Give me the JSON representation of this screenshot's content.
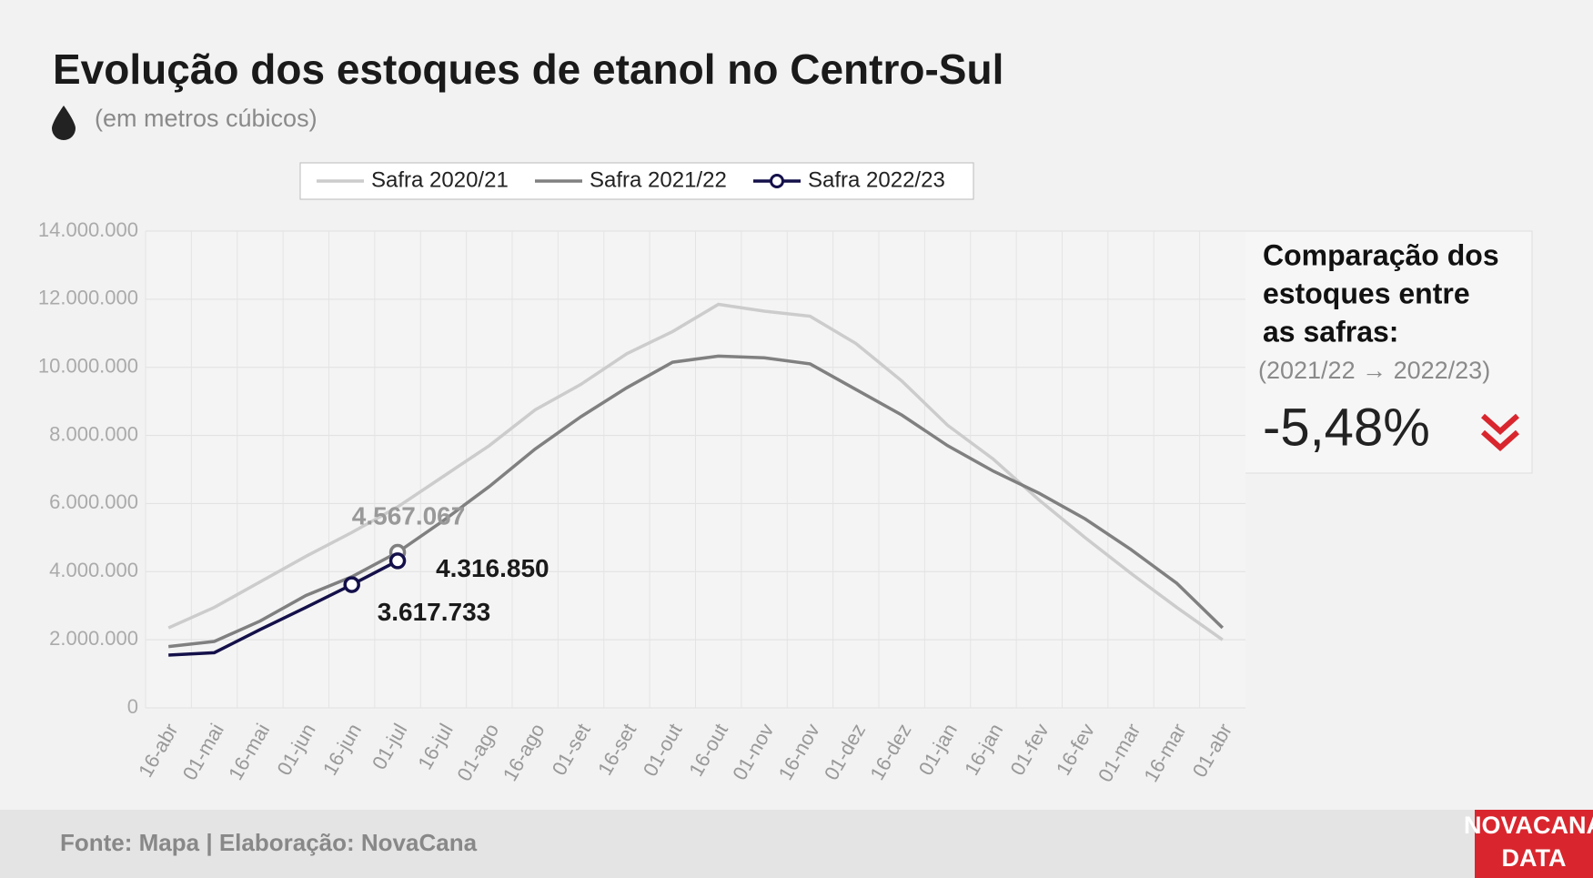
{
  "chart_data": {
    "type": "line",
    "title": "Evolução dos estoques de etanol no Centro-Sul",
    "subtitle": "(em metros cúbicos)",
    "categories": [
      "16-abr",
      "01-mai",
      "16-mai",
      "01-jun",
      "16-jun",
      "01-jul",
      "16-jul",
      "01-ago",
      "16-ago",
      "01-set",
      "16-set",
      "01-out",
      "16-out",
      "01-nov",
      "16-nov",
      "01-dez",
      "16-dez",
      "01-jan",
      "16-jan",
      "01-fev",
      "16-fev",
      "01-mar",
      "16-mar",
      "01-abr"
    ],
    "series": [
      {
        "name": "Safra 2020/21",
        "color": "#cccccc",
        "values": [
          2350000,
          2950000,
          3700000,
          4450000,
          5150000,
          5900000,
          6800000,
          7700000,
          8750000,
          9500000,
          10400000,
          11050000,
          11850000,
          11650000,
          11500000,
          10700000,
          9600000,
          8300000,
          7300000,
          6100000,
          5000000,
          3950000,
          2950000,
          2000000
        ]
      },
      {
        "name": "Safra 2021/22",
        "color": "#808080",
        "values": [
          1800000,
          1950000,
          2550000,
          3300000,
          3850000,
          4567067,
          5500000,
          6500000,
          7600000,
          8550000,
          9400000,
          10150000,
          10330000,
          10280000,
          10100000,
          9350000,
          8600000,
          7700000,
          6950000,
          6300000,
          5550000,
          4650000,
          3660000,
          2350000
        ],
        "value_labels": [
          null,
          null,
          null,
          null,
          null,
          "4.567.067",
          null,
          null,
          null,
          null,
          null,
          null,
          null,
          null,
          null,
          null,
          null,
          null,
          null,
          null,
          null,
          null,
          null,
          null
        ]
      },
      {
        "name": "Safra 2022/23",
        "color": "#14104a",
        "marker": true,
        "values": [
          1550000,
          1620000,
          2300000,
          2950000,
          3617733,
          4316850,
          null,
          null,
          null,
          null,
          null,
          null,
          null,
          null,
          null,
          null,
          null,
          null,
          null,
          null,
          null,
          null,
          null,
          null
        ],
        "value_labels": [
          null,
          null,
          null,
          null,
          "3.617.733",
          "4.316.850",
          null,
          null,
          null,
          null,
          null,
          null,
          null,
          null,
          null,
          null,
          null,
          null,
          null,
          null,
          null,
          null,
          null,
          null
        ]
      }
    ],
    "ylim": [
      0,
      14000000
    ],
    "yticks": [
      0,
      {
        "value": 2000000,
        "label": "2.000.000"
      },
      {
        "value": 4000000,
        "label": "4.000.000"
      },
      {
        "value": 6000000,
        "label": "6.000.000"
      },
      {
        "value": 8000000,
        "label": "8.000.000"
      },
      {
        "value": 10000000,
        "label": "10.000.000"
      },
      {
        "value": 12000000,
        "label": "12.000.000"
      },
      {
        "value": 14000000,
        "label": "14.000.000"
      }
    ],
    "grid": true,
    "legend": "top",
    "side_box": {
      "heading": [
        "Comparação dos",
        "estoques entre",
        "as safras:"
      ],
      "period": "(2021/22 → 2022/23)",
      "change": "-5,48%"
    },
    "source": "Fonte: Mapa | Elaboração: NovaCana",
    "logo": [
      "NOVACANA",
      "DATA"
    ]
  }
}
